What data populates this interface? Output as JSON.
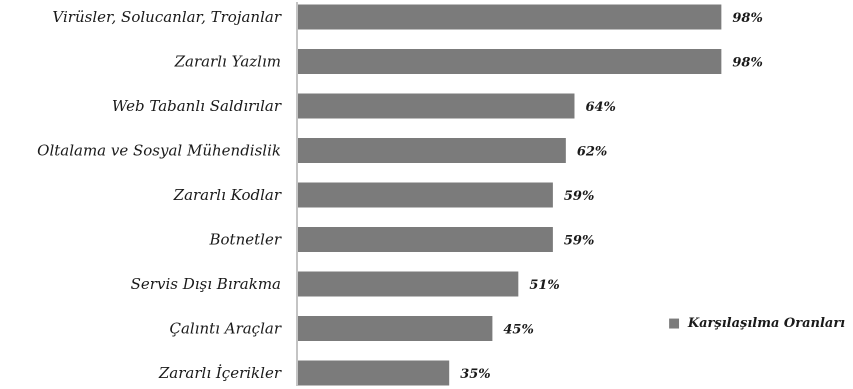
{
  "chart_data": {
    "type": "bar",
    "orientation": "horizontal",
    "categories": [
      "Virüsler, Solucanlar, Trojanlar",
      "Zararlı Yazlım",
      "Web Tabanlı Saldırılar",
      "Oltalama ve Sosyal Mühendislik",
      "Zararlı Kodlar",
      "Botnetler",
      "Servis Dışı Bırakma",
      "Çalıntı Araçlar",
      "Zararlı İçerikler"
    ],
    "series": [
      {
        "name": "Karşılaşılma Oranları",
        "values": [
          98,
          98,
          64,
          62,
          59,
          59,
          51,
          45,
          35
        ],
        "color": "#7b7b7b"
      }
    ],
    "value_labels": [
      "98%",
      "98%",
      "64%",
      "62%",
      "59%",
      "59%",
      "51%",
      "45%",
      "35%"
    ],
    "value_unit": "%",
    "xlim": [
      0,
      100
    ],
    "grid": false,
    "legend_position": "right",
    "legend_marker": "■"
  }
}
